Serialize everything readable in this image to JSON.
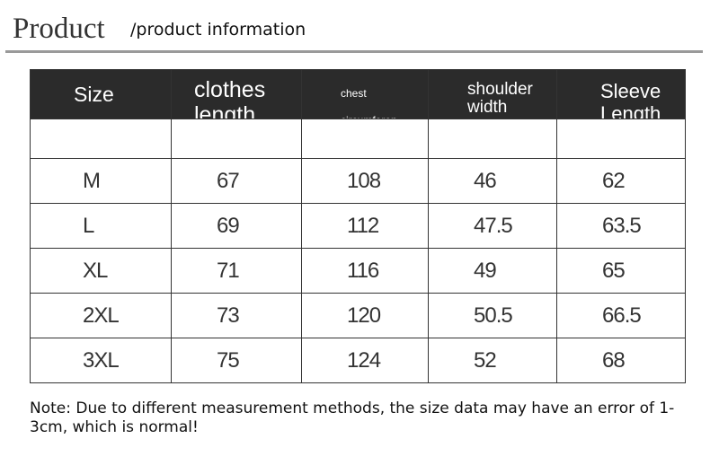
{
  "header": {
    "title": "Product",
    "subtitle": "/product information"
  },
  "table": {
    "columns": [
      "Size",
      "clothes length",
      "chest circumferen",
      "shoulder width",
      "Sleeve Length"
    ],
    "rows": [
      [
        "M",
        "67",
        "108",
        "46",
        "62"
      ],
      [
        "L",
        "69",
        "112",
        "47.5",
        "63.5"
      ],
      [
        "XL",
        "71",
        "116",
        "49",
        "65"
      ],
      [
        "2XL",
        "73",
        "120",
        "50.5",
        "66.5"
      ],
      [
        "3XL",
        "75",
        "124",
        "52",
        "68"
      ]
    ]
  },
  "note": "Note: Due to different measurement methods, the size data may have an error of 1-3cm, which is normal!"
}
